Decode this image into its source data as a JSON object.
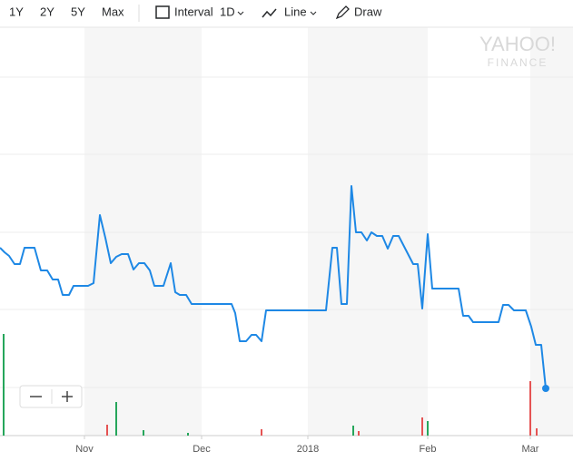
{
  "toolbar": {
    "ranges": [
      "1Y",
      "2Y",
      "5Y",
      "Max"
    ],
    "interval_label": "Interval",
    "interval": "1D",
    "chart_type": "Line",
    "draw": "Draw"
  },
  "logo": {
    "brand": "YAHOO!",
    "sub": "FINANCE"
  },
  "chart_data": {
    "type": "line",
    "color": "#1e88e5",
    "x": [
      0,
      5,
      10,
      16,
      22,
      27,
      38,
      45,
      52,
      58,
      64,
      69,
      76,
      81,
      97,
      103,
      110,
      116,
      122,
      128,
      134,
      141,
      147,
      153,
      159,
      165,
      170,
      180,
      188,
      193,
      198,
      205,
      211,
      255,
      259,
      264,
      271,
      277,
      282,
      288,
      293,
      359,
      366,
      371,
      376,
      382,
      387,
      392,
      398,
      404,
      409,
      415,
      421,
      427,
      433,
      439,
      455,
      460,
      465,
      471,
      476,
      505,
      510,
      516,
      521,
      549,
      554,
      560,
      566,
      579,
      585,
      590,
      596,
      601
    ],
    "values": [
      207,
      202,
      198,
      189,
      189,
      207,
      207,
      182,
      182,
      172,
      172,
      155,
      155,
      165,
      165,
      168,
      243,
      218,
      190,
      197,
      200,
      200,
      183,
      190,
      190,
      182,
      165,
      165,
      190,
      158,
      155,
      155,
      145,
      145,
      135,
      104,
      104,
      111,
      111,
      104,
      138,
      138,
      207,
      207,
      145,
      145,
      275,
      224,
      224,
      215,
      224,
      220,
      220,
      206,
      220,
      220,
      189,
      189,
      140,
      222,
      162,
      162,
      132,
      132,
      125,
      125,
      144,
      144,
      138,
      138,
      120,
      100,
      100,
      52
    ],
    "xlim": [
      0,
      631
    ],
    "ylim": [
      0,
      450
    ],
    "xticks": [
      {
        "value": 93,
        "label": "Nov"
      },
      {
        "value": 222,
        "label": "Dec"
      },
      {
        "value": 339,
        "label": "2018"
      },
      {
        "value": 471,
        "label": "Feb"
      },
      {
        "value": 584,
        "label": "Mar"
      }
    ],
    "ygrid": [
      53,
      139,
      224,
      310,
      395
    ],
    "grid": true,
    "volume": {
      "x": [
        4,
        118,
        128,
        158,
        207,
        288,
        389,
        395,
        465,
        471,
        584,
        591
      ],
      "values": [
        112,
        12,
        37,
        6,
        3,
        7,
        11,
        5,
        20,
        16,
        60,
        8
      ],
      "colors": [
        "#26a65b",
        "#e55353",
        "#26a65b",
        "#26a65b",
        "#26a65b",
        "#e55353",
        "#26a65b",
        "#e55353",
        "#e55353",
        "#26a65b",
        "#e55353",
        "#e55353"
      ]
    }
  }
}
